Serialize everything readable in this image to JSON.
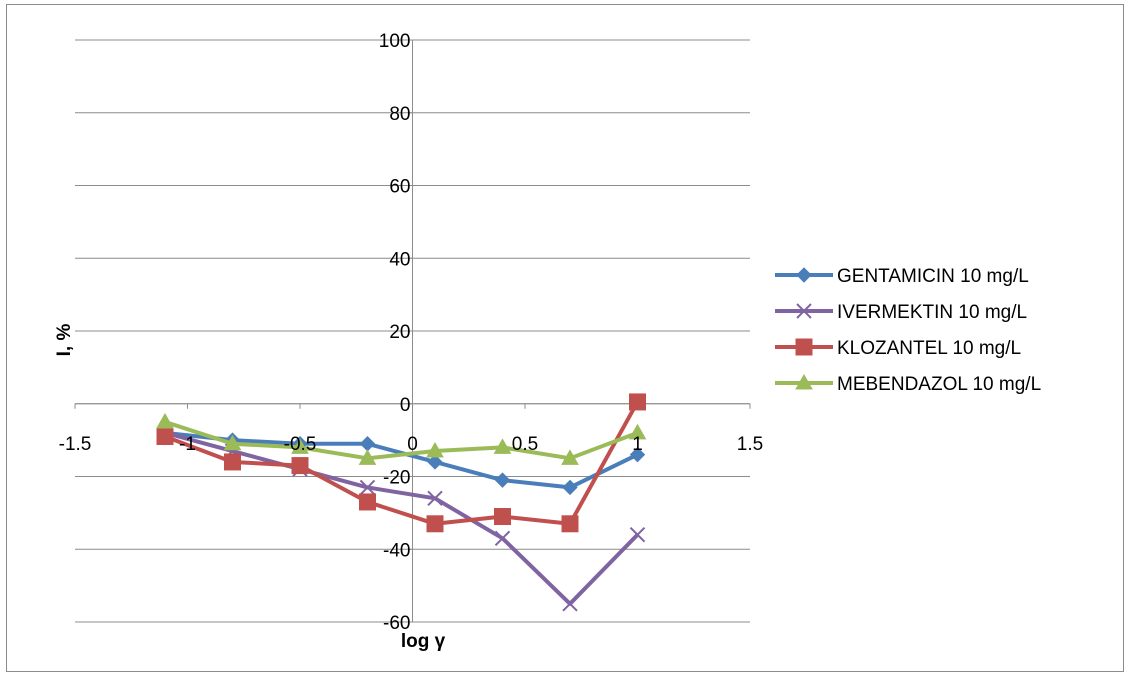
{
  "chart_data": {
    "type": "scatter",
    "xlabel": "log γ",
    "ylabel": "I, %",
    "xlim": [
      -1.5,
      1.5
    ],
    "ylim": [
      -60,
      100
    ],
    "xticks": [
      -1.5,
      -1,
      -0.5,
      0,
      0.5,
      1,
      1.5
    ],
    "yticks": [
      -60,
      -40,
      -20,
      0,
      20,
      40,
      60,
      80,
      100
    ],
    "xtick_labels": [
      "-1.5",
      "-1",
      "-0.5",
      "0",
      "0.5",
      "1",
      "1.5"
    ],
    "ytick_labels": [
      "-60",
      "-40",
      "-20",
      "0",
      "20",
      "40",
      "60",
      "80",
      "100"
    ],
    "grid": "horizontal",
    "legend_position": "right",
    "series": [
      {
        "name": "GENTAMICIN 10 mg/L",
        "color": "#4a7ebb",
        "marker": "diamond",
        "x": [
          -1.1,
          -0.8,
          -0.5,
          -0.2,
          0.1,
          0.4,
          0.7,
          1.0
        ],
        "y": [
          -8,
          -10,
          -11,
          -11,
          -16,
          -21,
          -23,
          -14
        ]
      },
      {
        "name": "IVERMEKTIN 10 mg/L",
        "color": "#8064a2",
        "marker": "x",
        "x": [
          -1.1,
          -0.8,
          -0.5,
          -0.2,
          0.1,
          0.4,
          0.7,
          1.0
        ],
        "y": [
          -8,
          -13,
          -18,
          -23,
          -26,
          -37,
          -55,
          -36
        ]
      },
      {
        "name": "KLOZANTEL 10 mg/L",
        "color": "#c0504d",
        "marker": "square",
        "x": [
          -1.1,
          -0.8,
          -0.5,
          -0.2,
          0.1,
          0.4,
          0.7,
          1.0
        ],
        "y": [
          -9,
          -16,
          -17,
          -27,
          -33,
          -31,
          -33,
          0.5
        ]
      },
      {
        "name": "MEBENDAZOL 10 mg/L",
        "color": "#9bbb59",
        "marker": "triangle",
        "x": [
          -1.1,
          -0.8,
          -0.5,
          -0.2,
          0.1,
          0.4,
          0.7,
          1.0
        ],
        "y": [
          -5,
          -11,
          -12,
          -15,
          -13,
          -12,
          -15,
          -8
        ]
      }
    ]
  }
}
